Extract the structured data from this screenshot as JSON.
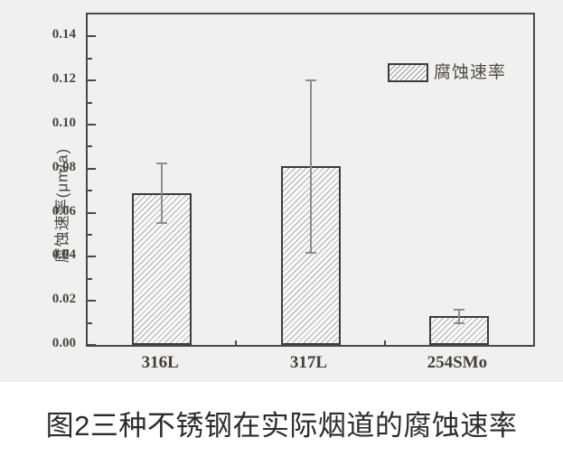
{
  "figure": {
    "caption": "图2三种不锈钢在实际烟道的腐蚀速率"
  },
  "chart_data": {
    "type": "bar",
    "title": "",
    "xlabel": "",
    "ylabel": "腐蚀速率(μm/a)",
    "categories": [
      "316L",
      "317L",
      "254SMo"
    ],
    "series": [
      {
        "name": "腐蚀速率",
        "values": [
          0.069,
          0.081,
          0.013
        ],
        "error_bars": [
          0.0135,
          0.039,
          0.003
        ]
      }
    ],
    "ylim": [
      0,
      0.15
    ],
    "ytick_values": [
      0,
      0.02,
      0.04,
      0.06,
      0.08,
      0.1,
      0.12,
      0.14
    ],
    "ytick_labels": [
      "0.00",
      "0.02",
      "0.04",
      "0.06",
      "0.08",
      "0.10",
      "0.12",
      "0.14"
    ],
    "ytick_minor_values": [
      0.01,
      0.03,
      0.05,
      0.07,
      0.09,
      0.11,
      0.13
    ],
    "grid": false,
    "legend": {
      "label": "腐蚀速率",
      "position": "upper right",
      "swatch_style": "diagonal-hatch"
    },
    "bar_style": "diagonal-hatch",
    "colors": {
      "panel_background": "#f2f0ee",
      "axis": "#4a4846",
      "bar_border": "#3e3c3a",
      "bar_fill": "#faf9f7",
      "hatch_line": "#aeadaa",
      "error_bar": "#8d8c8a",
      "tick_text": "#474441",
      "caption_text": "#2b2b2b"
    }
  }
}
